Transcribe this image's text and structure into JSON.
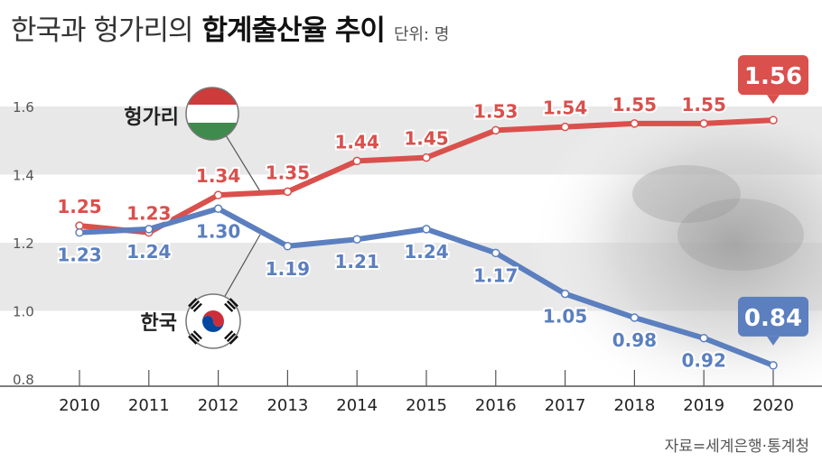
{
  "header": {
    "title_light": "한국과 헝가리의",
    "title_bold": "합계출산율 추이",
    "unit": "단위: 명"
  },
  "source": "자료=세계은행·통계청",
  "colors": {
    "hungary": "#d9504c",
    "korea": "#5b7fbf",
    "band": "#e8e8e8"
  },
  "chart_data": {
    "type": "line",
    "title": "한국과 헝가리의 합계출산율 추이",
    "unit": "단위: 명",
    "x": [
      "2010",
      "2011",
      "2012",
      "2013",
      "2014",
      "2015",
      "2016",
      "2017",
      "2018",
      "2019",
      "2020"
    ],
    "y_ticks": [
      "0.8",
      "1.0",
      "1.2",
      "1.4",
      "1.6"
    ],
    "ylim": [
      0.8,
      1.6
    ],
    "grid": "horizontal bands",
    "series": [
      {
        "name": "헝가리",
        "color": "#d9504c",
        "values": [
          1.25,
          1.23,
          1.34,
          1.35,
          1.44,
          1.45,
          1.53,
          1.54,
          1.55,
          1.55,
          1.56
        ],
        "labels": [
          "1.25",
          "1.23",
          "1.34",
          "1.35",
          "1.44",
          "1.45",
          "1.53",
          "1.54",
          "1.55",
          "1.55",
          "1.56"
        ]
      },
      {
        "name": "한국",
        "color": "#5b7fbf",
        "values": [
          1.23,
          1.24,
          1.3,
          1.19,
          1.21,
          1.24,
          1.17,
          1.05,
          0.98,
          0.92,
          0.84
        ],
        "labels": [
          "1.23",
          "1.24",
          "1.30",
          "1.19",
          "1.21",
          "1.24",
          "1.17",
          "1.05",
          "0.98",
          "0.92",
          "0.84"
        ]
      }
    ],
    "legend": [
      {
        "label": "헝가리",
        "icon": "hungary-flag-icon"
      },
      {
        "label": "한국",
        "icon": "korea-flag-icon"
      }
    ]
  }
}
